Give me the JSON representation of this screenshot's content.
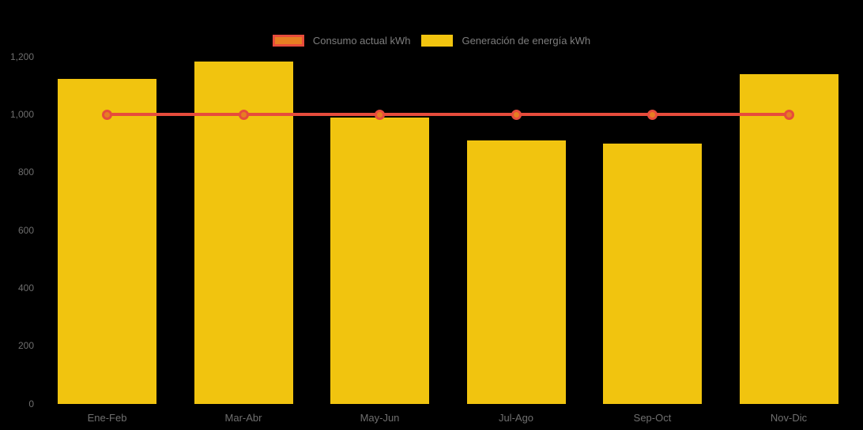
{
  "chart_data": {
    "type": "bar",
    "title": "",
    "xlabel": "",
    "ylabel": "",
    "background_color": "#000000",
    "bar_color": "#f1c40f",
    "line_color": "#e74c3c",
    "marker_color": "#e67e22",
    "axis_text_color": "#6e6e6e",
    "legend_text_color": "#7d7d7d",
    "grid": false,
    "legend_position": "top-center",
    "ylim": [
      0,
      1200
    ],
    "yticks": [
      {
        "value": 0,
        "label": "0"
      },
      {
        "value": 200,
        "label": "200"
      },
      {
        "value": 400,
        "label": "400"
      },
      {
        "value": 600,
        "label": "600"
      },
      {
        "value": 800,
        "label": "800"
      },
      {
        "value": 1000,
        "label": "1,000"
      },
      {
        "value": 1200,
        "label": "1,200"
      }
    ],
    "categories": [
      "Ene-Feb",
      "Mar-Abr",
      "May-Jun",
      "Jul-Ago",
      "Sep-Oct",
      "Nov-Dic"
    ],
    "series": [
      {
        "name": "Consumo actual kWh",
        "type": "line",
        "values": [
          1000,
          1000,
          1000,
          1000,
          1000,
          1000
        ]
      },
      {
        "name": "Generación de energía kWh",
        "type": "bar",
        "values": [
          1125,
          1185,
          990,
          910,
          900,
          1140
        ]
      }
    ]
  }
}
